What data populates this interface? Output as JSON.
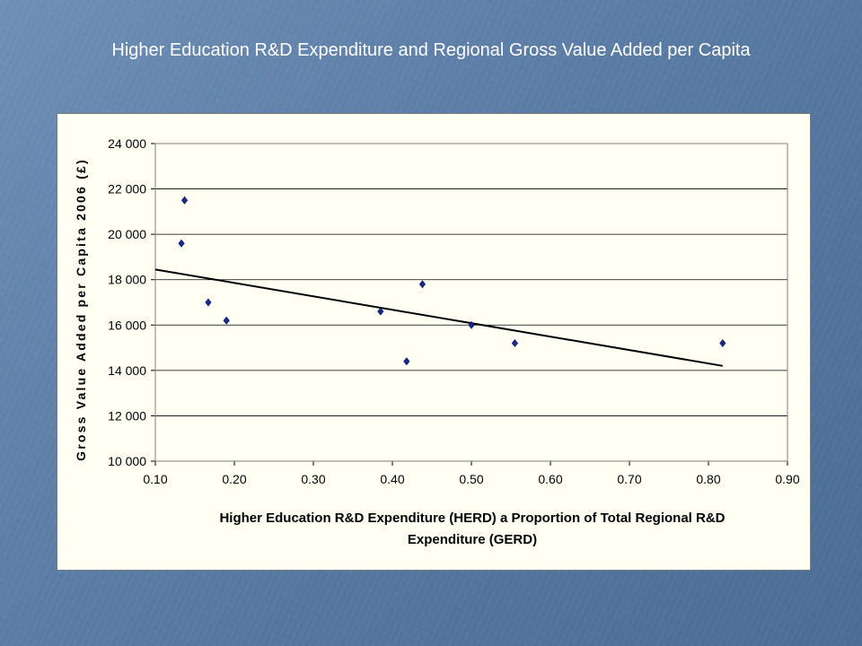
{
  "slide": {
    "title": "Higher Education R&D Expenditure and Regional Gross Value Added per Capita"
  },
  "chart_data": {
    "type": "scatter",
    "title": "Higher Education R&D Expenditure and Regional Gross Value Added per Capita",
    "xlabel_line1": "Higher Education R&D Expenditure (HERD) a Proportion of Total Regional R&D",
    "xlabel_line2": "Expenditure (GERD)",
    "ylabel": "Gross Value Added per Capita 2006 (£)",
    "xlim": [
      0.1,
      0.9
    ],
    "ylim": [
      10000,
      24000
    ],
    "x_ticks": [
      "0.10",
      "0.20",
      "0.30",
      "0.40",
      "0.50",
      "0.60",
      "0.70",
      "0.80",
      "0.90"
    ],
    "y_ticks": [
      "10 000",
      "12 000",
      "14 000",
      "16 000",
      "18 000",
      "20 000",
      "22 000",
      "24 000"
    ],
    "grid": "horizontal",
    "points": [
      {
        "x": 0.133,
        "y": 19600
      },
      {
        "x": 0.137,
        "y": 21500
      },
      {
        "x": 0.167,
        "y": 17000
      },
      {
        "x": 0.19,
        "y": 16200
      },
      {
        "x": 0.385,
        "y": 16600
      },
      {
        "x": 0.418,
        "y": 14400
      },
      {
        "x": 0.438,
        "y": 17800
      },
      {
        "x": 0.5,
        "y": 16000
      },
      {
        "x": 0.555,
        "y": 15200
      },
      {
        "x": 0.818,
        "y": 15200
      }
    ],
    "trendline": {
      "type": "linear",
      "x": [
        0.1,
        0.818
      ],
      "y": [
        18450,
        14200
      ]
    },
    "colors": {
      "points": "#1a2a8c",
      "trendline": "#000000",
      "plot_bg": "#fffff4"
    }
  }
}
